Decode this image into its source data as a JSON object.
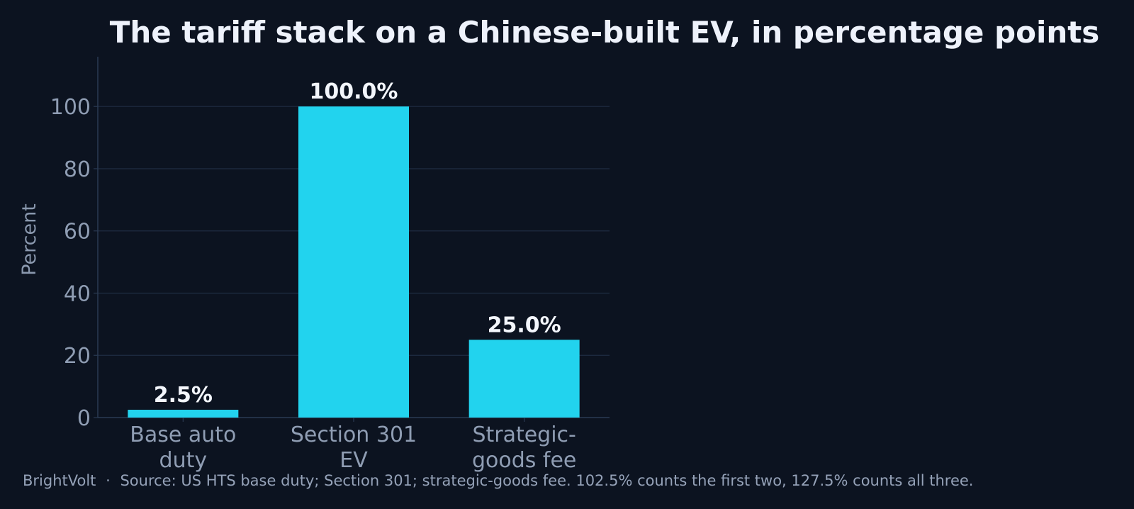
{
  "colors": {
    "background": "#0c1320",
    "bar": "#22d3ee",
    "title": "#eef2fb",
    "data_label": "#f3f6fc",
    "tick": "#8f9db3",
    "axis_label": "#8a98ae",
    "grid": "#1f2d42",
    "axis": "#2a3a52",
    "footer": "#95a2b8"
  },
  "chart_data": {
    "type": "bar",
    "title": "The tariff stack on a Chinese-built EV, in percentage points",
    "xlabel": "",
    "ylabel": "Percent",
    "categories": [
      [
        "Base auto",
        "duty"
      ],
      [
        "Section 301",
        "EV"
      ],
      [
        "Strategic-",
        "goods fee"
      ]
    ],
    "values": [
      2.5,
      100.0,
      25.0
    ],
    "data_labels": [
      "2.5%",
      "100.0%",
      "25.0%"
    ],
    "yticks": [
      0,
      20,
      40,
      60,
      80,
      100
    ],
    "ylim": [
      0,
      116
    ],
    "grid": true,
    "legend": "none"
  },
  "footer": {
    "brand": "BrightVolt",
    "separator": "·",
    "source": "Source: US HTS base duty; Section 301; strategic-goods fee. 102.5% counts the first two, 127.5% counts all three."
  }
}
